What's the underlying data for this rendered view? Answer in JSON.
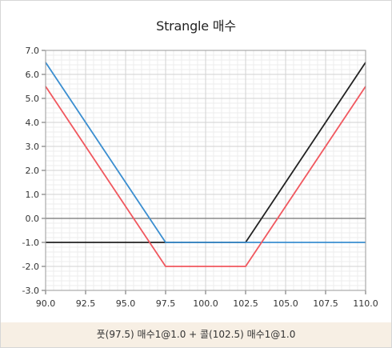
{
  "chart_data": {
    "type": "line",
    "title": "Strangle 매수",
    "xlabel": "",
    "ylabel": "",
    "xlim": [
      90,
      110
    ],
    "ylim": [
      -3,
      7
    ],
    "x_ticks": [
      "90.0",
      "92.5",
      "95.0",
      "97.5",
      "100.0",
      "102.5",
      "105.0",
      "107.5",
      "110.0"
    ],
    "y_ticks": [
      "-3.0",
      "-2.0",
      "-1.0",
      "0.0",
      "1.0",
      "2.0",
      "3.0",
      "4.0",
      "5.0",
      "6.0",
      "7.0"
    ],
    "grid": true,
    "series": [
      {
        "color": "#222222",
        "points": [
          [
            90,
            -1
          ],
          [
            102.5,
            -1
          ],
          [
            110,
            6.5
          ]
        ]
      },
      {
        "color": "#3a8ed0",
        "points": [
          [
            90,
            6.5
          ],
          [
            97.5,
            -1
          ],
          [
            110,
            -1
          ]
        ]
      },
      {
        "color": "#f0575e",
        "points": [
          [
            90,
            5.5
          ],
          [
            97.5,
            -2
          ],
          [
            102.5,
            -2
          ],
          [
            110,
            5.5
          ]
        ]
      }
    ],
    "zero_line_color": "#888888"
  },
  "footer": {
    "text": "풋(97.5) 매수1@1.0 + 콜(102.5) 매수1@1.0"
  }
}
